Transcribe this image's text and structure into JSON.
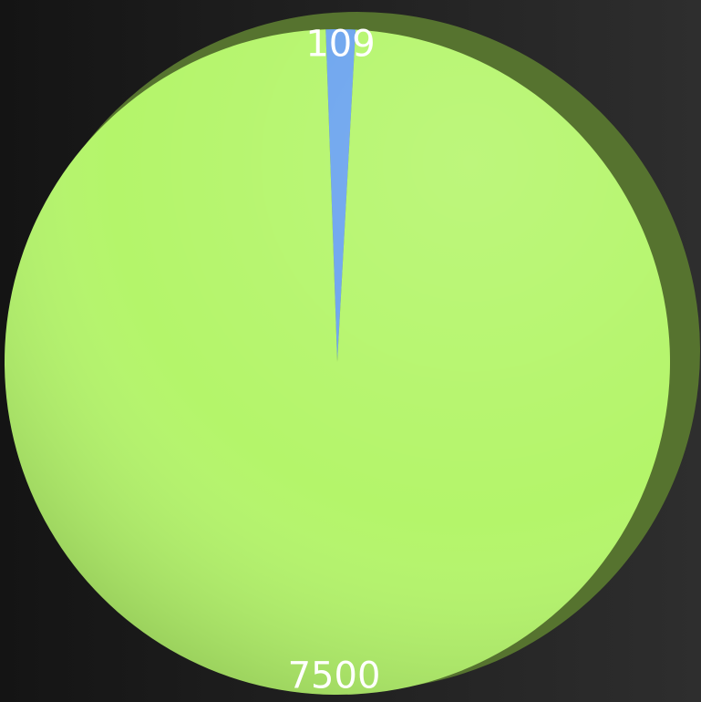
{
  "chart_data": {
    "type": "pie",
    "values": [
      109,
      7500
    ],
    "colors": [
      "#6aa3ee",
      "#b4f56a"
    ]
  }
}
